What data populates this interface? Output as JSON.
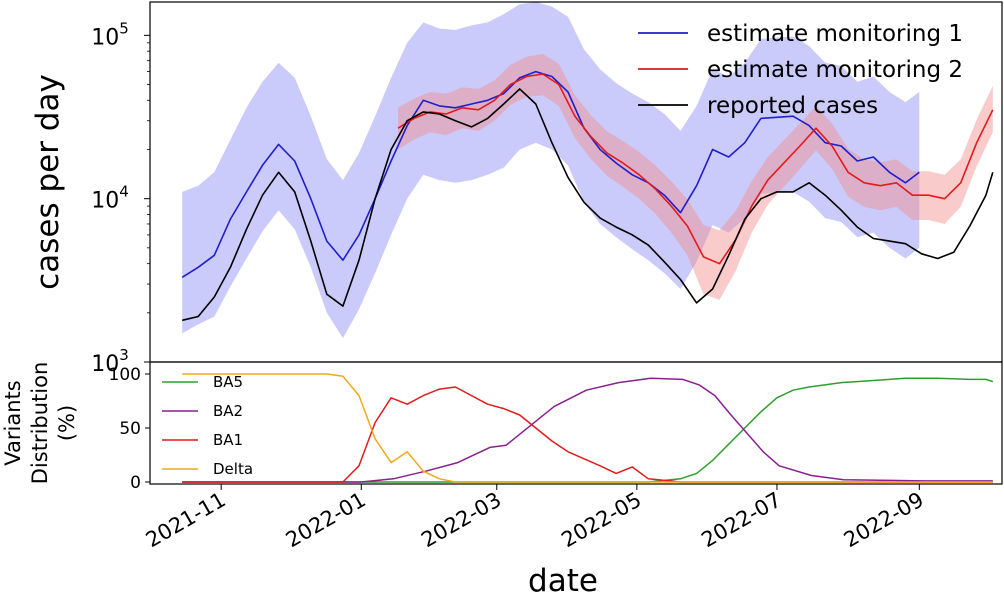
{
  "chart_data": [
    {
      "type": "line",
      "panel": "top",
      "title": "",
      "ylabel": "cases per day",
      "yscale": "log",
      "ylim": [
        1000,
        160000
      ],
      "yticks": [
        1000,
        10000,
        100000
      ],
      "ytick_labels": [
        {
          "base": "10",
          "exp": "3"
        },
        {
          "base": "10",
          "exp": "4"
        },
        {
          "base": "10",
          "exp": "5"
        }
      ],
      "grid": false,
      "legend_position": "top-right",
      "series": [
        {
          "name": "estimate monitoring 1",
          "color": "#1f1fcc",
          "band_color": "#8a8cf5",
          "x": [
            "2021-10-15",
            "2021-10-22",
            "2021-10-29",
            "2021-11-05",
            "2021-11-12",
            "2021-11-19",
            "2021-11-26",
            "2021-12-03",
            "2021-12-10",
            "2021-12-17",
            "2021-12-24",
            "2021-12-31",
            "2022-01-07",
            "2022-01-14",
            "2022-01-21",
            "2022-01-28",
            "2022-02-04",
            "2022-02-11",
            "2022-02-18",
            "2022-02-25",
            "2022-03-04",
            "2022-03-11",
            "2022-03-18",
            "2022-03-25",
            "2022-04-01",
            "2022-04-08",
            "2022-04-15",
            "2022-04-22",
            "2022-04-29",
            "2022-05-06",
            "2022-05-13",
            "2022-05-20",
            "2022-05-27",
            "2022-06-03",
            "2022-06-10",
            "2022-06-17",
            "2022-06-24",
            "2022-07-01",
            "2022-07-08",
            "2022-07-15",
            "2022-07-22",
            "2022-07-29",
            "2022-08-05",
            "2022-08-12",
            "2022-08-19",
            "2022-08-26",
            "2022-09-01"
          ],
          "y": [
            3300,
            3800,
            4500,
            7500,
            11000,
            16000,
            21500,
            17000,
            10000,
            5500,
            4200,
            6000,
            10000,
            17000,
            28000,
            40000,
            37000,
            36000,
            38000,
            40000,
            44000,
            55000,
            60000,
            56000,
            45000,
            27000,
            20000,
            16500,
            14000,
            12500,
            10500,
            8200,
            12000,
            20000,
            18000,
            22000,
            31000,
            31500,
            32000,
            28000,
            22000,
            21000,
            17000,
            18000,
            14500,
            12500,
            14500
          ],
          "lower": [
            1500,
            1700,
            1900,
            2900,
            4300,
            6300,
            8500,
            6500,
            3800,
            2000,
            1400,
            2100,
            3500,
            6000,
            10000,
            14000,
            13000,
            12500,
            13000,
            14000,
            15500,
            20000,
            22000,
            20000,
            16000,
            9500,
            7000,
            5800,
            4900,
            4200,
            3500,
            2800,
            4100,
            6900,
            6200,
            7600,
            10700,
            10900,
            11000,
            9600,
            7600,
            7200,
            5800,
            6200,
            5000,
            4300,
            5000
          ],
          "upper": [
            11000,
            12000,
            14500,
            23000,
            36000,
            52000,
            68000,
            55000,
            32000,
            17500,
            13000,
            19000,
            32000,
            55000,
            90000,
            120000,
            110000,
            108000,
            115000,
            120000,
            135000,
            155000,
            160000,
            150000,
            130000,
            82000,
            62000,
            51000,
            44000,
            39000,
            33000,
            26000,
            37000,
            62000,
            56000,
            68000,
            95000,
            97000,
            98000,
            86000,
            68000,
            65000,
            52000,
            56000,
            45000,
            39000,
            45000
          ]
        },
        {
          "name": "estimate monitoring 2",
          "color": "#e41a1c",
          "band_color": "#f28b8c",
          "x": [
            "2022-01-17",
            "2022-01-24",
            "2022-01-31",
            "2022-02-07",
            "2022-02-14",
            "2022-02-21",
            "2022-02-28",
            "2022-03-07",
            "2022-03-14",
            "2022-03-21",
            "2022-03-28",
            "2022-04-04",
            "2022-04-11",
            "2022-04-18",
            "2022-04-25",
            "2022-05-02",
            "2022-05-09",
            "2022-05-16",
            "2022-05-23",
            "2022-05-30",
            "2022-06-06",
            "2022-06-13",
            "2022-06-20",
            "2022-06-27",
            "2022-07-04",
            "2022-07-11",
            "2022-07-18",
            "2022-07-25",
            "2022-08-01",
            "2022-08-08",
            "2022-08-15",
            "2022-08-22",
            "2022-08-29",
            "2022-09-05",
            "2022-09-12",
            "2022-09-19",
            "2022-09-26",
            "2022-10-03"
          ],
          "y": [
            27000,
            31000,
            34000,
            33000,
            36000,
            35000,
            40000,
            50000,
            56000,
            58000,
            50000,
            32000,
            24000,
            19000,
            16500,
            14000,
            11500,
            9000,
            6800,
            4400,
            4000,
            5600,
            9000,
            13000,
            16500,
            21000,
            27000,
            21000,
            14500,
            12500,
            12000,
            12500,
            10500,
            10500,
            10000,
            12500,
            22000,
            35000
          ],
          "lower": [
            20000,
            23000,
            25500,
            24500,
            27000,
            26000,
            30000,
            37500,
            42000,
            43000,
            37000,
            23500,
            17500,
            13800,
            11800,
            10000,
            8100,
            6200,
            4500,
            2600,
            2400,
            3600,
            6200,
            9200,
            11800,
            15200,
            19800,
            15200,
            10300,
            8900,
            8500,
            8900,
            7400,
            7400,
            7000,
            8900,
            15800,
            25500
          ],
          "upper": [
            36000,
            41000,
            45000,
            44000,
            48000,
            47000,
            53000,
            66000,
            74000,
            77000,
            67000,
            43000,
            32500,
            25800,
            22500,
            19300,
            16000,
            12800,
            9900,
            6900,
            6400,
            8400,
            12800,
            18000,
            22800,
            28800,
            37000,
            28800,
            20200,
            17400,
            16700,
            17400,
            14700,
            14700,
            14000,
            17400,
            30500,
            49000
          ]
        },
        {
          "name": "reported cases",
          "color": "#000000",
          "x": [
            "2021-10-15",
            "2021-10-22",
            "2021-10-29",
            "2021-11-05",
            "2021-11-12",
            "2021-11-19",
            "2021-11-26",
            "2021-12-03",
            "2021-12-10",
            "2021-12-17",
            "2021-12-24",
            "2021-12-31",
            "2022-01-07",
            "2022-01-14",
            "2022-01-21",
            "2022-01-28",
            "2022-02-04",
            "2022-02-11",
            "2022-02-18",
            "2022-02-25",
            "2022-03-04",
            "2022-03-11",
            "2022-03-18",
            "2022-03-25",
            "2022-04-01",
            "2022-04-08",
            "2022-04-15",
            "2022-04-22",
            "2022-04-29",
            "2022-05-06",
            "2022-05-13",
            "2022-05-20",
            "2022-05-27",
            "2022-06-03",
            "2022-06-10",
            "2022-06-17",
            "2022-06-24",
            "2022-07-01",
            "2022-07-08",
            "2022-07-15",
            "2022-07-22",
            "2022-07-29",
            "2022-08-05",
            "2022-08-12",
            "2022-08-19",
            "2022-08-26",
            "2022-09-02",
            "2022-09-09",
            "2022-09-16",
            "2022-09-23",
            "2022-09-30",
            "2022-10-03"
          ],
          "y": [
            1800,
            1900,
            2500,
            3800,
            6500,
            10500,
            14500,
            11000,
            5500,
            2600,
            2200,
            4200,
            10000,
            20000,
            30000,
            34000,
            33000,
            30000,
            27500,
            31000,
            38000,
            47000,
            38000,
            22000,
            13500,
            9500,
            7600,
            6700,
            6000,
            5200,
            4100,
            3200,
            2300,
            2800,
            4500,
            7500,
            10000,
            11000,
            11000,
            12500,
            10500,
            8500,
            6700,
            5700,
            5500,
            5300,
            4600,
            4300,
            4700,
            6800,
            10500,
            14500
          ]
        }
      ]
    },
    {
      "type": "line",
      "panel": "bottom",
      "title": "",
      "xlabel": "date",
      "ylabel_lines": [
        "Variants",
        "Distribution",
        "(%)"
      ],
      "ylim": [
        0,
        100
      ],
      "yticks": [
        0,
        50,
        100
      ],
      "xlim": [
        "2021-10-01",
        "2022-10-07"
      ],
      "xticks": [
        "2021-11-01",
        "2022-01-01",
        "2022-03-01",
        "2022-05-01",
        "2022-07-01",
        "2022-09-01"
      ],
      "xtick_labels": [
        "2021-11",
        "2022-01",
        "2022-03",
        "2022-05",
        "2022-07",
        "2022-09"
      ],
      "grid": false,
      "legend_position": "top-left",
      "series": [
        {
          "name": "BA5",
          "color": "#2ca02c",
          "x": [
            "2021-10-15",
            "2022-05-06",
            "2022-05-20",
            "2022-05-27",
            "2022-06-03",
            "2022-06-10",
            "2022-06-17",
            "2022-06-24",
            "2022-07-01",
            "2022-07-08",
            "2022-07-15",
            "2022-07-29",
            "2022-08-12",
            "2022-08-26",
            "2022-09-09",
            "2022-09-23",
            "2022-09-30",
            "2022-10-03"
          ],
          "y": [
            0,
            0,
            3,
            8,
            20,
            35,
            50,
            65,
            78,
            85,
            88,
            92,
            94,
            96,
            96,
            95,
            95,
            93
          ]
        },
        {
          "name": "BA2",
          "color": "#8b1f8f",
          "x": [
            "2021-10-15",
            "2022-01-01",
            "2022-01-15",
            "2022-01-29",
            "2022-02-12",
            "2022-02-26",
            "2022-03-05",
            "2022-03-19",
            "2022-03-26",
            "2022-04-09",
            "2022-04-23",
            "2022-05-07",
            "2022-05-21",
            "2022-05-28",
            "2022-06-04",
            "2022-06-11",
            "2022-06-18",
            "2022-06-25",
            "2022-07-02",
            "2022-07-16",
            "2022-07-30",
            "2022-09-03",
            "2022-10-03"
          ],
          "y": [
            0,
            0,
            3,
            10,
            18,
            32,
            34,
            58,
            70,
            85,
            92,
            96,
            95,
            90,
            80,
            62,
            45,
            28,
            15,
            6,
            2,
            1,
            1
          ]
        },
        {
          "name": "BA1",
          "color": "#e41a1c",
          "x": [
            "2021-10-15",
            "2021-12-24",
            "2021-12-31",
            "2022-01-07",
            "2022-01-14",
            "2022-01-21",
            "2022-01-28",
            "2022-02-04",
            "2022-02-11",
            "2022-02-18",
            "2022-02-25",
            "2022-03-04",
            "2022-03-11",
            "2022-03-18",
            "2022-03-25",
            "2022-04-01",
            "2022-04-15",
            "2022-04-22",
            "2022-04-29",
            "2022-05-06",
            "2022-05-20",
            "2022-10-03"
          ],
          "y": [
            0,
            0,
            15,
            55,
            78,
            72,
            80,
            86,
            88,
            80,
            72,
            68,
            62,
            50,
            38,
            28,
            15,
            8,
            14,
            3,
            0,
            0
          ]
        },
        {
          "name": "Delta",
          "color": "#f0a81c",
          "x": [
            "2021-10-15",
            "2021-11-15",
            "2021-12-10",
            "2021-12-17",
            "2021-12-24",
            "2021-12-31",
            "2022-01-07",
            "2022-01-14",
            "2022-01-21",
            "2022-01-28",
            "2022-02-04",
            "2022-02-11",
            "2022-10-03"
          ],
          "y": [
            100,
            100,
            100,
            100,
            98,
            80,
            40,
            18,
            28,
            10,
            3,
            0,
            0
          ]
        }
      ]
    }
  ]
}
